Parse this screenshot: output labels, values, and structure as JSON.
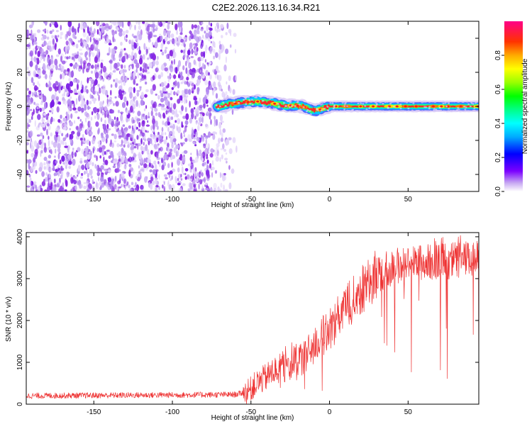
{
  "title": "C2E2.2026.113.16.34.R21",
  "chart_data": [
    {
      "type": "heatmap",
      "xlabel": "Height of straight line (km)",
      "ylabel": "Frequency (Hz)",
      "xlim": [
        -193,
        95
      ],
      "ylim": [
        -50,
        50
      ],
      "xticks": [
        -150,
        -100,
        -50,
        0,
        50
      ],
      "yticks": [
        -40,
        -20,
        0,
        20,
        40
      ],
      "noise_region_x": [
        -193,
        -60
      ],
      "noise_fade_x": [
        -75,
        -58
      ],
      "ridge": {
        "x": [
          -72,
          -65,
          -58,
          -52,
          -47,
          -42,
          -37,
          -32,
          -27,
          -22,
          -17,
          -12,
          -8,
          -4,
          0,
          10,
          20,
          30,
          40,
          50,
          60,
          70,
          80,
          95
        ],
        "y": [
          0,
          1,
          2,
          2.5,
          3,
          2.5,
          2,
          1,
          0.5,
          0.5,
          0,
          -2,
          -2.5,
          -1,
          0,
          0,
          0,
          0,
          0,
          0,
          0,
          0,
          0,
          0
        ]
      },
      "colorbar": {
        "label": "Normalized spectral amplitude",
        "ticks": [
          0.0,
          0.2,
          0.4,
          0.6,
          0.8
        ],
        "tick_labels": [
          "0.0",
          "0.2",
          "0.4",
          "0.6",
          "0.8"
        ],
        "range": [
          0,
          1
        ]
      }
    },
    {
      "type": "line",
      "xlabel": "Height of straight line (km)",
      "ylabel": "SNR (10 * v/v)",
      "xlim": [
        -193,
        95
      ],
      "ylim": [
        0,
        4100
      ],
      "xticks": [
        -150,
        -100,
        -50,
        0,
        50
      ],
      "yticks": [
        0,
        1000,
        2000,
        3000,
        4000
      ],
      "series": [
        {
          "color": "#ee3333",
          "x": [
            -193,
            -150,
            -100,
            -60,
            -52,
            -48,
            -42,
            -35,
            -30,
            -25,
            -20,
            -15,
            -10,
            -5,
            0,
            5,
            10,
            15,
            20,
            25,
            30,
            40,
            50,
            60,
            70,
            80,
            95
          ],
          "y": [
            200,
            210,
            220,
            230,
            300,
            450,
            600,
            800,
            850,
            950,
            1050,
            1150,
            1400,
            1600,
            1800,
            2000,
            2300,
            2500,
            2700,
            2900,
            3100,
            3300,
            3350,
            3400,
            3400,
            3450,
            3450
          ]
        }
      ]
    }
  ]
}
